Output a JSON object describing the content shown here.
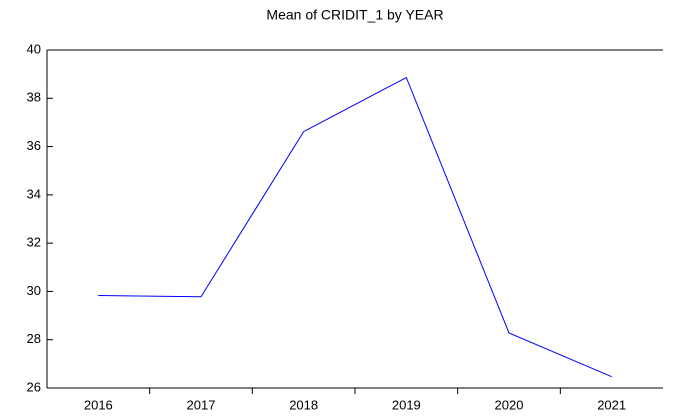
{
  "chart_data": {
    "type": "line",
    "title": "Mean of CRIDIT_1 by YEAR",
    "categories": [
      "2016",
      "2017",
      "2018",
      "2019",
      "2020",
      "2021"
    ],
    "series": [
      {
        "color": "#0000ff",
        "values": [
          29.83,
          29.78,
          36.62,
          38.86,
          28.28,
          26.47
        ]
      }
    ],
    "ylim": [
      26,
      40
    ],
    "yticks": [
      26,
      28,
      30,
      32,
      34,
      36,
      38,
      40
    ]
  }
}
